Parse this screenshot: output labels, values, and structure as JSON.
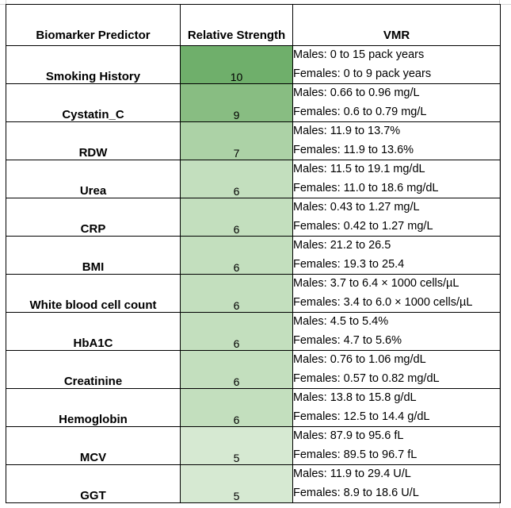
{
  "table": {
    "headers": [
      "Biomarker Predictor",
      "Relative Strength",
      "VMR"
    ],
    "rows": [
      {
        "biomarker": "Smoking History",
        "strength": "10",
        "males": "Males: 0 to 15 pack years",
        "females": "Females: 0 to 9 pack years",
        "color": "#6faf6b"
      },
      {
        "biomarker": "Cystatin_C",
        "strength": "9",
        "males": "Males: 0.66 to 0.96 mg/L",
        "females": "Females: 0.6 to 0.79 mg/L",
        "color": "#88bd82"
      },
      {
        "biomarker": "RDW",
        "strength": "7",
        "males": "Males: 11.9 to 13.7%",
        "females": "Females: 11.9 to 13.6%",
        "color": "#acd2a6"
      },
      {
        "biomarker": "Urea",
        "strength": "6",
        "males": "Males: 11.5 to 19.1 mg/dL",
        "females": "Females: 11.0 to 18.6 mg/dL",
        "color": "#c3dfbe"
      },
      {
        "biomarker": "CRP",
        "strength": "6",
        "males": "Males: 0.43 to 1.27 mg/L",
        "females": "Females: 0.42 to 1.27 mg/L",
        "color": "#c3dfbe"
      },
      {
        "biomarker": "BMI",
        "strength": "6",
        "males": "Males: 21.2 to 26.5",
        "females": "Females: 19.3 to 25.4",
        "color": "#c3dfbe"
      },
      {
        "biomarker": "White blood cell count",
        "strength": "6",
        "males": "Males: 3.7 to 6.4 × 1000 cells/µL",
        "females": "Females: 3.4 to 6.0 × 1000 cells/µL",
        "color": "#c3dfbe"
      },
      {
        "biomarker": "HbA1C",
        "strength": "6",
        "males": "Males: 4.5 to 5.4%",
        "females": "Females: 4.7 to 5.6%",
        "color": "#c3dfbe"
      },
      {
        "biomarker": "Creatinine",
        "strength": "6",
        "males": "Males: 0.76 to 1.06 mg/dL",
        "females": "Females: 0.57 to 0.82 mg/dL",
        "color": "#c3dfbe"
      },
      {
        "biomarker": "Hemoglobin",
        "strength": "6",
        "males": "Males: 13.8 to 15.8 g/dL",
        "females": "Females: 12.5 to 14.4 g/dL",
        "color": "#c3dfbe"
      },
      {
        "biomarker": "MCV",
        "strength": "5",
        "males": "Males: 87.9 to 95.6 fL",
        "females": "Females: 89.5 to 96.7 fL",
        "color": "#d6e9d2"
      },
      {
        "biomarker": "GGT",
        "strength": "5",
        "males": "Males: 11.9 to 29.4 U/L",
        "females": "Females: 8.9 to 18.6 U/L",
        "color": "#d6e9d2"
      }
    ]
  }
}
